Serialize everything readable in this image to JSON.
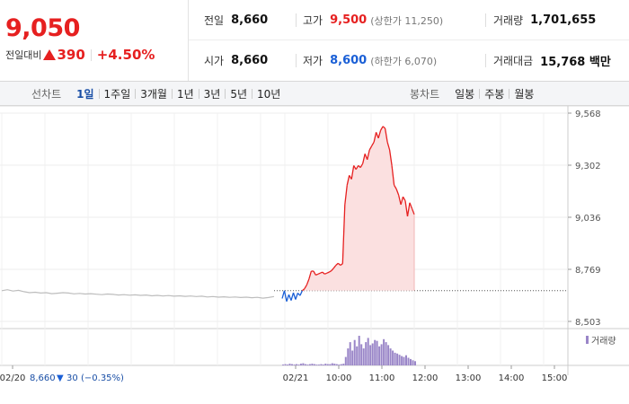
{
  "quote": {
    "price": "9,050",
    "change_label": "전일대비",
    "change_amount": "390",
    "change_percent": "+4.50%",
    "up_color": "#e62020",
    "down_color": "#1a5fd6"
  },
  "stats": {
    "prev_close": {
      "label": "전일",
      "value": "8,660"
    },
    "open": {
      "label": "시가",
      "value": "8,660"
    },
    "high": {
      "label": "고가",
      "value": "9,500",
      "sub": "(상한가 11,250)"
    },
    "low": {
      "label": "저가",
      "value": "8,600",
      "sub": "(하한가 6,070)"
    },
    "volume": {
      "label": "거래량",
      "value": "1,701,655"
    },
    "turnover": {
      "label": "거래대금",
      "value": "15,768 백만"
    }
  },
  "tabs": {
    "line_title": "선차트",
    "line": [
      "1일",
      "1주일",
      "3개월",
      "1년",
      "3년",
      "5년",
      "10년"
    ],
    "line_active": 0,
    "candle_title": "봉차트",
    "candle": [
      "일봉",
      "주봉",
      "월봉"
    ]
  },
  "footer": {
    "prev_date": "02/20",
    "prev_close": "8,660",
    "prev_change": "30",
    "prev_pct": "(−0.35%)"
  },
  "chart_data": {
    "type": "line",
    "yticks": [
      "9,568",
      "9,302",
      "9,036",
      "8,769",
      "8,503"
    ],
    "ylim": [
      8503,
      9568
    ],
    "reference_line": 8660,
    "xticks": [
      "02/20",
      "02/21",
      "10:00",
      "11:00",
      "12:00",
      "13:00",
      "14:00",
      "15:00"
    ],
    "volume_legend": "거래량",
    "prev_day_series": {
      "name": "02/20",
      "values": [
        8660,
        8665,
        8658,
        8662,
        8655,
        8650,
        8652,
        8648,
        8650,
        8645,
        8647,
        8650,
        8648,
        8644,
        8646,
        8643,
        8645,
        8642,
        8640,
        8643,
        8641,
        8638,
        8640,
        8637,
        8639,
        8636,
        8638,
        8634,
        8636,
        8633,
        8635,
        8632,
        8634,
        8631,
        8633,
        8630,
        8632,
        8628,
        8630,
        8627,
        8629,
        8626,
        8628,
        8625,
        8627,
        8624,
        8626,
        8622,
        8625,
        8630
      ]
    },
    "today_series": {
      "name": "02/21",
      "values": [
        8620,
        8660,
        8605,
        8640,
        8610,
        8650,
        8615,
        8648,
        8635,
        8660,
        8670,
        8690,
        8720,
        8760,
        8760,
        8740,
        8745,
        8750,
        8755,
        8745,
        8750,
        8755,
        8762,
        8775,
        8790,
        8800,
        8790,
        8798,
        9100,
        9200,
        9250,
        9230,
        9300,
        9280,
        9300,
        9290,
        9310,
        9360,
        9330,
        9380,
        9400,
        9420,
        9470,
        9440,
        9480,
        9500,
        9490,
        9420,
        9380,
        9300,
        9200,
        9180,
        9150,
        9100,
        9140,
        9120,
        9040,
        9110,
        9080,
        9050
      ]
    },
    "today_volume": [
      2,
      3,
      2,
      4,
      3,
      2,
      3,
      2,
      4,
      5,
      3,
      2,
      3,
      4,
      3,
      2,
      2,
      3,
      2,
      4,
      3,
      3,
      5,
      4,
      3,
      2,
      3,
      4,
      20,
      40,
      55,
      35,
      60,
      45,
      70,
      50,
      40,
      55,
      65,
      48,
      52,
      60,
      58,
      45,
      50,
      62,
      55,
      48,
      40,
      35,
      30,
      28,
      25,
      22,
      20,
      24,
      18,
      15,
      12,
      10
    ]
  }
}
